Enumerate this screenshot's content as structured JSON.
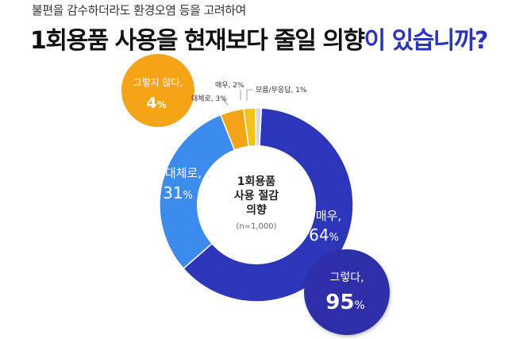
{
  "header": {
    "subtitle": "불편을 감수하더라도 환경오염 등을 고려하여",
    "title_part1": "1회용품 사용을 현재보다 줄일 의향",
    "title_part2": "이 있습니까?"
  },
  "chart_data": {
    "type": "pie",
    "center_label": [
      "1회용품",
      "사용 절감",
      "의향"
    ],
    "center_note": "(n=1,000)",
    "slices": [
      {
        "label": "매우,",
        "value": 64,
        "value_text": "64",
        "unit": "%",
        "color": "#2d36b9"
      },
      {
        "label": "대체로,",
        "value": 31,
        "value_text": "31",
        "unit": "%",
        "color": "#3b8cec"
      },
      {
        "label": "그렇지 않다,",
        "value": 4,
        "value_text": "4",
        "unit": "%",
        "color": "#f5a417"
      },
      {
        "label": "매우, 2%",
        "value": 2,
        "color": "#f3c21a"
      },
      {
        "label": "모름/무응답, 1%",
        "value": 1,
        "color": "#d9d9d9"
      }
    ],
    "sub_breakdown": [
      {
        "label": "대체로, 3%",
        "value": 3
      },
      {
        "label": "매우, 2%",
        "value": 2
      }
    ],
    "total_bubble": {
      "label": "그렇다,",
      "value_text": "95",
      "unit": "%",
      "value": 95
    }
  }
}
